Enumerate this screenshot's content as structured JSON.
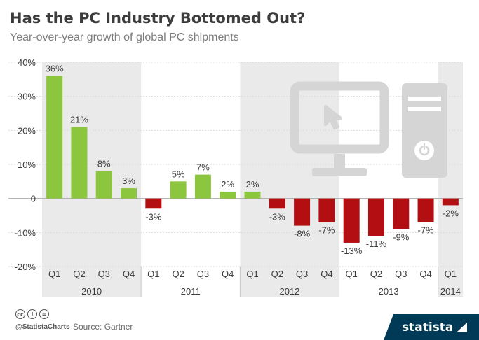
{
  "header": {
    "title": "Has the PC Industry Bottomed Out?",
    "subtitle": "Year-over-year growth of global PC shipments"
  },
  "footer": {
    "handle": "@StatistaCharts",
    "source": "Source: Gartner",
    "brand": "statista"
  },
  "colors": {
    "positive": "#8cc63f",
    "negative": "#b30f12",
    "band": "#eaeaea",
    "icon": "#d5d5d5",
    "text": "#3c3c3c",
    "brand_bg": "#003a57"
  },
  "chart_data": {
    "type": "bar",
    "title": "Has the PC Industry Bottomed Out?",
    "subtitle": "Year-over-year growth of global PC shipments",
    "categories": [
      "Q1",
      "Q2",
      "Q3",
      "Q4",
      "Q1",
      "Q2",
      "Q3",
      "Q4",
      "Q1",
      "Q2",
      "Q3",
      "Q4",
      "Q1",
      "Q2",
      "Q3",
      "Q4",
      "Q1"
    ],
    "years": [
      "2010",
      "2011",
      "2012",
      "2013",
      "2014"
    ],
    "year_of_category": [
      "2010",
      "2010",
      "2010",
      "2010",
      "2011",
      "2011",
      "2011",
      "2011",
      "2012",
      "2012",
      "2012",
      "2012",
      "2013",
      "2013",
      "2013",
      "2013",
      "2014"
    ],
    "values": [
      36,
      21,
      8,
      3,
      -3,
      5,
      7,
      2,
      2,
      -3,
      -8,
      -7,
      -13,
      -11,
      -9,
      -7,
      -2
    ],
    "value_labels": [
      "36%",
      "21%",
      "8%",
      "3%",
      "-3%",
      "5%",
      "7%",
      "2%",
      "2%",
      "-3%",
      "-8%",
      "-7%",
      "-13%",
      "-11%",
      "-9%",
      "-7%",
      "-2%"
    ],
    "ylim": [
      -20,
      40
    ],
    "yticks": [
      -20,
      -10,
      0,
      10,
      20,
      30,
      40
    ],
    "ytick_labels": [
      "-20%",
      "-10%",
      "0",
      "10%",
      "20%",
      "30%",
      "40%"
    ],
    "xlabel": "",
    "ylabel": "",
    "grid": true,
    "legend": "none"
  }
}
